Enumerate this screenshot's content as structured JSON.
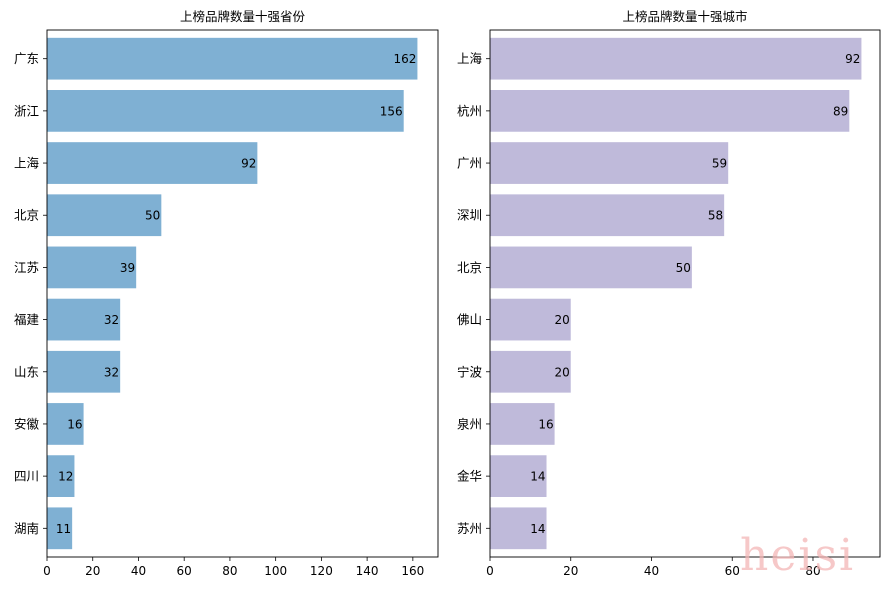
{
  "chart_data": [
    {
      "type": "bar",
      "orientation": "horizontal",
      "title": "上榜品牌数量十强省份",
      "categories": [
        "广东",
        "浙江",
        "上海",
        "北京",
        "江苏",
        "福建",
        "山东",
        "安徽",
        "四川",
        "湖南"
      ],
      "values": [
        162,
        156,
        92,
        50,
        39,
        32,
        32,
        16,
        12,
        11
      ],
      "xlim": [
        0,
        171
      ],
      "xticks": [
        0,
        20,
        40,
        60,
        80,
        100,
        120,
        140,
        160
      ],
      "color": "#7fb0d3",
      "grid": false,
      "xlabel": "",
      "ylabel": ""
    },
    {
      "type": "bar",
      "orientation": "horizontal",
      "title": "上榜品牌数量十强城市",
      "categories": [
        "上海",
        "杭州",
        "广州",
        "深圳",
        "北京",
        "佛山",
        "宁波",
        "泉州",
        "金华",
        "苏州"
      ],
      "values": [
        92,
        89,
        59,
        58,
        50,
        20,
        20,
        16,
        14,
        14
      ],
      "xlim": [
        0,
        96.6
      ],
      "xticks": [
        0,
        20,
        40,
        60,
        80
      ],
      "color": "#bfbada",
      "grid": false,
      "xlabel": "",
      "ylabel": ""
    }
  ],
  "watermark": {
    "text": "heisi"
  }
}
